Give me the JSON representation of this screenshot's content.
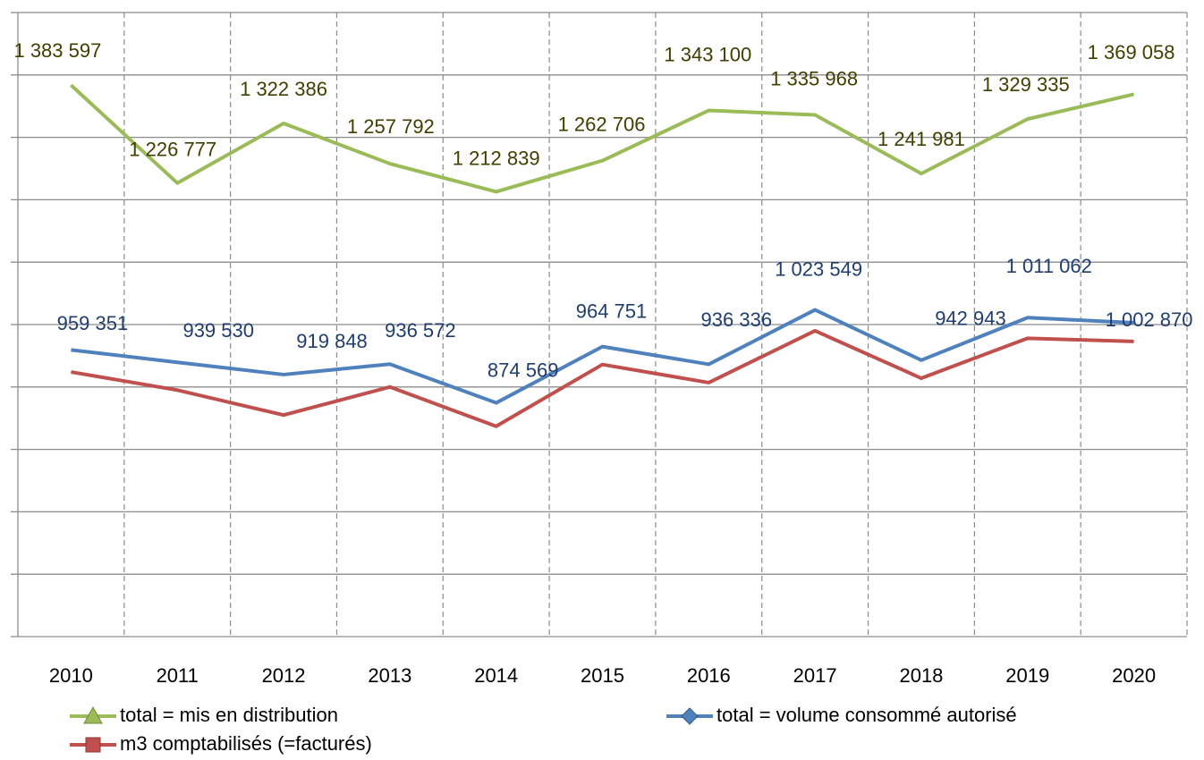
{
  "chart_data": {
    "type": "line",
    "categories": [
      "2010",
      "2011",
      "2012",
      "2013",
      "2014",
      "2015",
      "2016",
      "2017",
      "2018",
      "2019",
      "2020"
    ],
    "series": [
      {
        "name": "total = mis en distribution",
        "color": "#9bbb59",
        "label_color": "#3f3f00",
        "values": [
          1383597,
          1226777,
          1322386,
          1257792,
          1212839,
          1262706,
          1343100,
          1335968,
          1241981,
          1329335,
          1369058
        ],
        "value_labels": [
          "1 383 597",
          "1 226 777",
          "1 322 386",
          "1 257 792",
          "1 212 839",
          "1 262 706",
          "1 343 100",
          "1 335 968",
          "1 241 981",
          "1 329 335",
          "1 369 058"
        ]
      },
      {
        "name": "total = volume consommé autorisé",
        "color": "#4f81bd",
        "label_color": "#1f3d6e",
        "values": [
          959351,
          939530,
          919848,
          936572,
          874569,
          964751,
          936336,
          1023549,
          942943,
          1011062,
          1002870
        ],
        "value_labels": [
          "959 351",
          "939 530",
          "919 848",
          "936 572",
          "874 569",
          "964 751",
          "936 336",
          "1 023 549",
          "942 943",
          "1 011 062",
          "1 002 870"
        ]
      },
      {
        "name": "m3 comptabilisés (=facturés)",
        "color": "#c0504d",
        "values": [
          924000,
          895000,
          855000,
          900000,
          837000,
          936000,
          907000,
          990000,
          914000,
          978000,
          973000
        ]
      }
    ],
    "ylim": [
      500000,
      1500000
    ],
    "yticks": [
      500000,
      600000,
      700000,
      800000,
      900000,
      1000000,
      1100000,
      1200000,
      1300000,
      1400000,
      1500000
    ],
    "grid": true
  }
}
